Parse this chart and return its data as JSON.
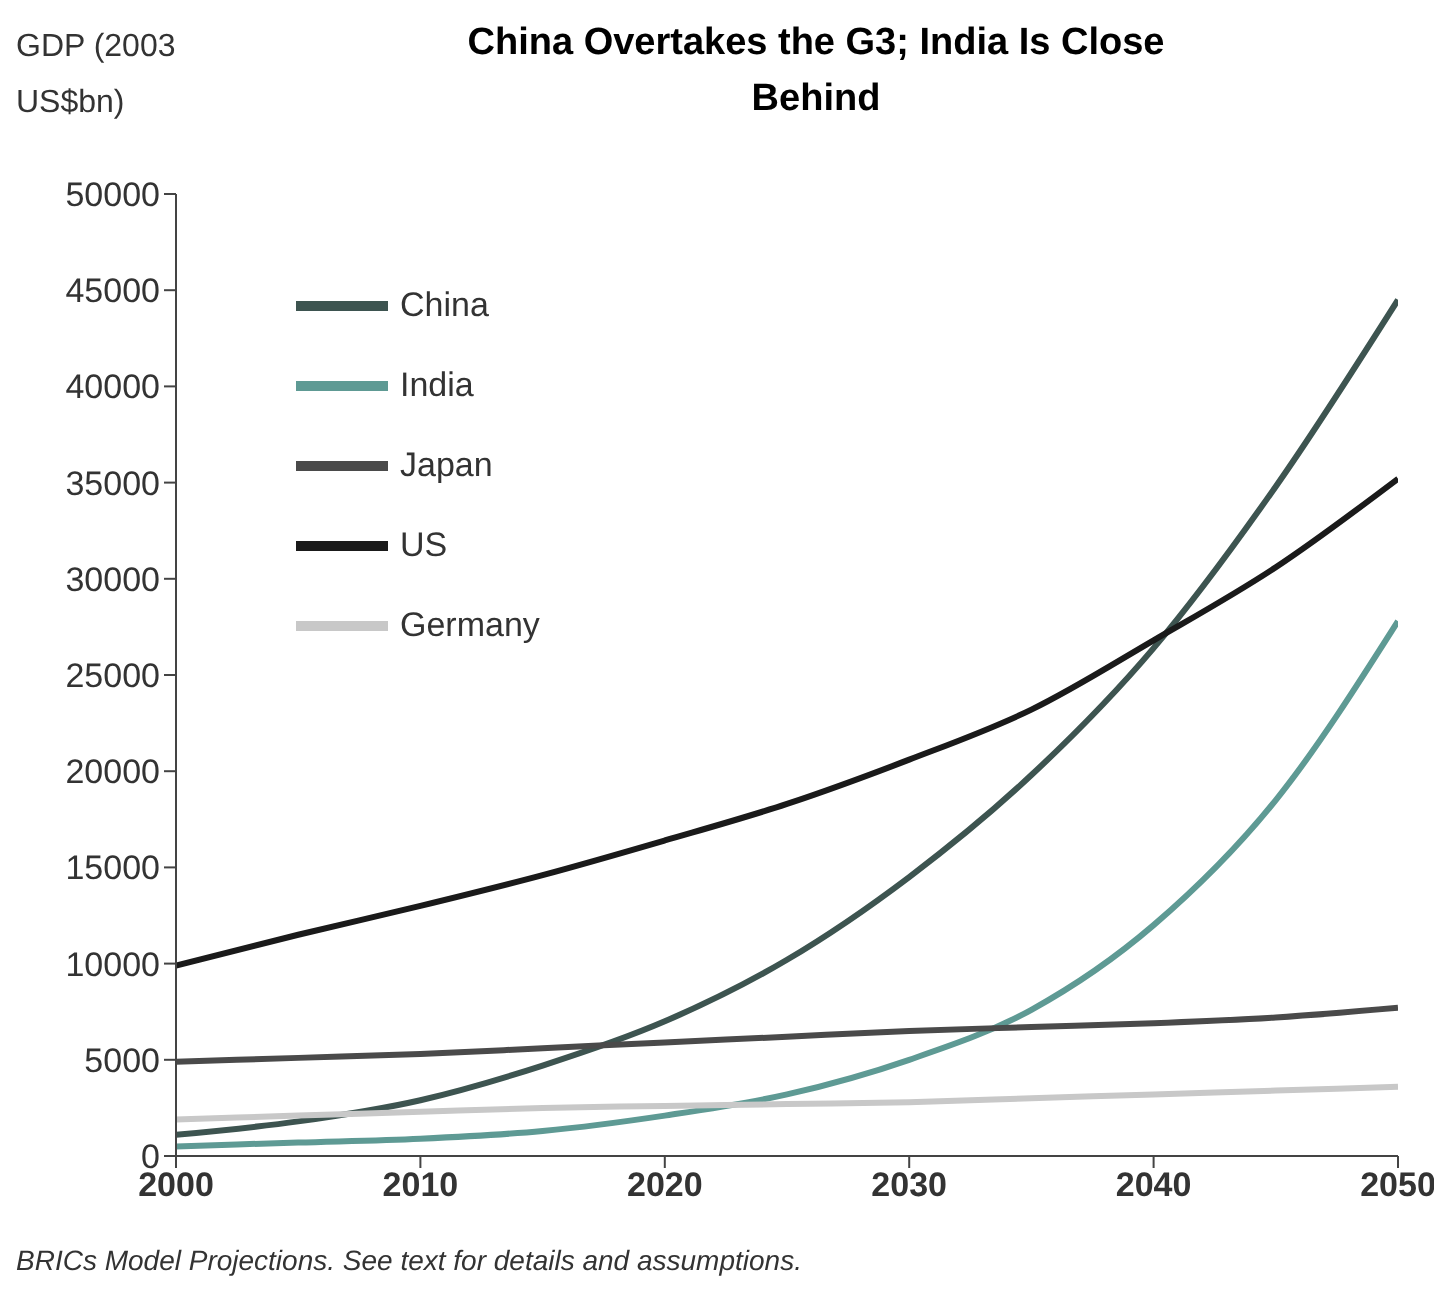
{
  "chart_data": {
    "type": "line",
    "title": "China Overtakes the G3; India Is Close Behind",
    "ylabel": "GDP (2003 US$bn)",
    "x": [
      2000,
      2005,
      2010,
      2015,
      2020,
      2025,
      2030,
      2035,
      2040,
      2045,
      2050
    ],
    "series": [
      {
        "name": "China",
        "color": "#3d5450",
        "values": [
          1100,
          1800,
          2900,
          4700,
          7000,
          10200,
          14500,
          19800,
          26400,
          34800,
          44500
        ]
      },
      {
        "name": "India",
        "color": "#5e9a94",
        "values": [
          500,
          700,
          900,
          1300,
          2100,
          3200,
          5000,
          7600,
          12000,
          18500,
          27800
        ]
      },
      {
        "name": "Japan",
        "color": "#4a4a4a",
        "values": [
          4900,
          5100,
          5300,
          5600,
          5900,
          6200,
          6500,
          6700,
          6900,
          7200,
          7700
        ]
      },
      {
        "name": "US",
        "color": "#1a1a1a",
        "values": [
          9900,
          11500,
          13000,
          14600,
          16400,
          18300,
          20600,
          23200,
          26800,
          30600,
          35200
        ]
      },
      {
        "name": "Germany",
        "color": "#c8c8c8",
        "values": [
          1900,
          2100,
          2300,
          2500,
          2600,
          2700,
          2800,
          3000,
          3200,
          3400,
          3600
        ]
      }
    ],
    "xlim": [
      2000,
      2050
    ],
    "xticks": [
      2000,
      2010,
      2020,
      2030,
      2040,
      2050
    ],
    "ylim": [
      0,
      50000
    ],
    "yticks": [
      0,
      5000,
      10000,
      15000,
      20000,
      25000,
      30000,
      35000,
      40000,
      45000,
      50000
    ],
    "grid": false,
    "legend": "top left",
    "marker": "none",
    "line_style": "solid",
    "annotations": [
      "BRICs Model Projections. See text for details and assumptions."
    ]
  }
}
